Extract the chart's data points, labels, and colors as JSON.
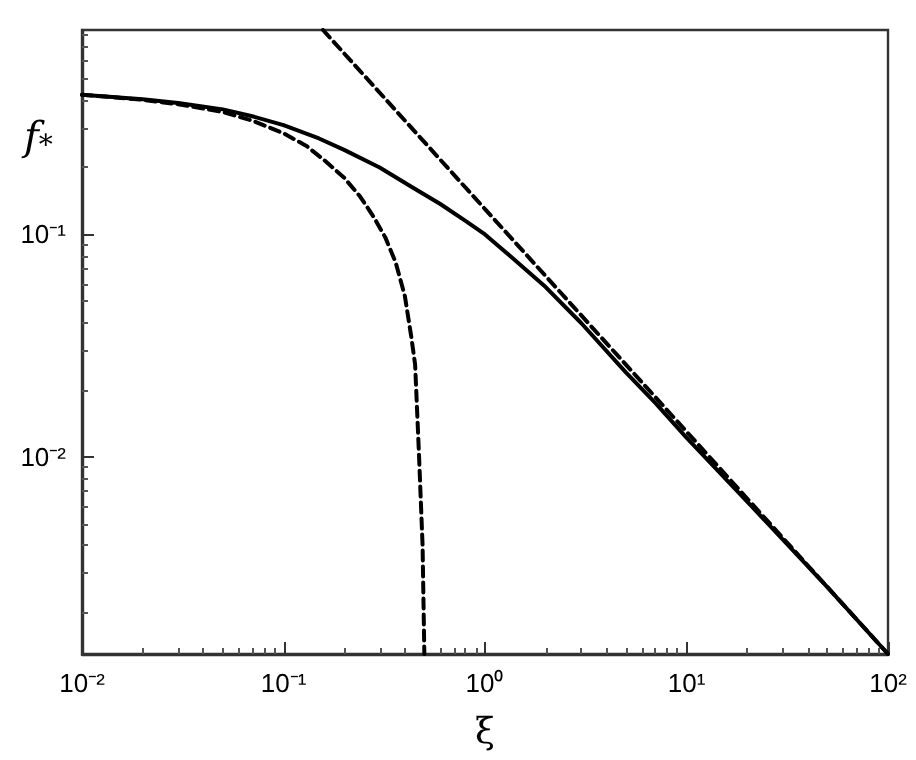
{
  "chart_data": {
    "type": "line",
    "xlabel": "ξ",
    "ylabel": "f$_{*}$",
    "log": "xy",
    "grid": false,
    "marker": "none",
    "xlim": [
      0.01,
      100
    ],
    "ylim": [
      0.0013,
      0.83
    ],
    "xticks": [
      {
        "value": 0.01,
        "label": "10⁻²"
      },
      {
        "value": 0.1,
        "label": "10⁻¹"
      },
      {
        "value": 1,
        "label": "10⁰"
      },
      {
        "value": 10,
        "label": "10¹"
      },
      {
        "value": 100,
        "label": "10²"
      }
    ],
    "yticks": [
      {
        "value": 0.01,
        "label": "10⁻²"
      },
      {
        "value": 0.1,
        "label": "10⁻¹"
      }
    ],
    "series": [
      {
        "color": "#000000",
        "line_style": "solid",
        "x": [
          0.01,
          0.02,
          0.03,
          0.05,
          0.07,
          0.1,
          0.15,
          0.2,
          0.3,
          0.45,
          0.6,
          0.8,
          1,
          1.4,
          2,
          3,
          5,
          7,
          10,
          20,
          50,
          100
        ],
        "values": [
          0.425,
          0.405,
          0.39,
          0.365,
          0.34,
          0.31,
          0.27,
          0.24,
          0.2,
          0.16,
          0.137,
          0.115,
          0.1,
          0.077,
          0.058,
          0.04,
          0.024,
          0.0175,
          0.0122,
          0.0063,
          0.0026,
          0.0013
        ]
      },
      {
        "color": "#000000",
        "line_style": "dashed",
        "x": [
          0.01,
          0.02,
          0.03,
          0.05,
          0.07,
          0.1,
          0.13,
          0.16,
          0.2,
          0.24,
          0.28,
          0.32,
          0.36,
          0.4,
          0.43,
          0.45,
          0.47,
          0.49,
          0.5
        ],
        "values": [
          0.425,
          0.403,
          0.385,
          0.355,
          0.325,
          0.285,
          0.25,
          0.215,
          0.18,
          0.148,
          0.12,
          0.097,
          0.075,
          0.053,
          0.035,
          0.026,
          0.0104,
          0.004,
          0.0013
        ]
      },
      {
        "color": "#000000",
        "line_style": "dashed",
        "x": [
          0.157,
          1,
          10,
          100
        ],
        "values": [
          0.83,
          0.13,
          0.013,
          0.0013
        ]
      }
    ]
  }
}
